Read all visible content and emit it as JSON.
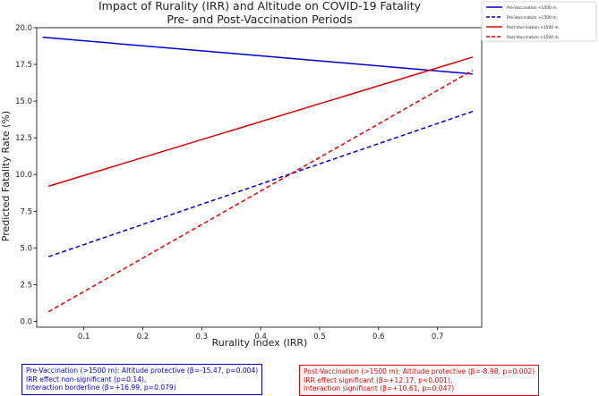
{
  "chart_data": {
    "type": "line",
    "title_lines": [
      "Impact of Rurality (IRR) and Altitude on COVID-19 Fatality",
      "Pre- and Post-Vaccination Periods"
    ],
    "xlabel": "Rurality Index (IRR)",
    "ylabel": "Predicted Fatality Rate (%)",
    "xlim": [
      0.02,
      0.775
    ],
    "ylim": [
      -0.4,
      20.0
    ],
    "x_ticks": [
      0.1,
      0.2,
      0.3,
      0.4,
      0.5,
      0.6,
      0.7
    ],
    "x_tick_labels": [
      "0.1",
      "0.2",
      "0.3",
      "0.4",
      "0.5",
      "0.6",
      "0.7"
    ],
    "y_ticks": [
      0.0,
      2.5,
      5.0,
      7.5,
      10.0,
      12.5,
      15.0,
      17.5,
      20.0
    ],
    "y_tick_labels": [
      "0.0",
      "2.5",
      "5.0",
      "7.5",
      "10.0",
      "12.5",
      "15.0",
      "17.5",
      "20.0"
    ],
    "grid": false,
    "legend_position": "top-right",
    "series": [
      {
        "name": "Pre-Vaccination <1500 m",
        "color": "#0000cc",
        "dash": "solid",
        "x": [
          0.03,
          0.76
        ],
        "y": [
          19.35,
          16.85
        ]
      },
      {
        "name": "Pre-Vaccination >1500 m",
        "color": "#0000cc",
        "dash": "dashed",
        "x": [
          0.04,
          0.76
        ],
        "y": [
          4.4,
          14.3
        ]
      },
      {
        "name": "Post-Vaccination <1500 m",
        "color": "#dd0000",
        "dash": "solid",
        "x": [
          0.04,
          0.76
        ],
        "y": [
          9.2,
          18.0
        ]
      },
      {
        "name": "Post-Vaccination >1500 m",
        "color": "#dd0000",
        "dash": "dashed",
        "x": [
          0.04,
          0.76
        ],
        "y": [
          0.65,
          17.1
        ]
      }
    ]
  },
  "annotations": {
    "pre": {
      "color": "#0000cc",
      "lines": [
        "Pre-Vaccination (>1500 m): Altitude protective (β=-15.47, p=0.004)",
        "IRR effect non-significant (p=0.14),",
        "Interaction borderline (β=+16.99, p=0.079)"
      ]
    },
    "post": {
      "color": "#dd0000",
      "lines": [
        "Post-Vaccination (>1500 m): Altitude protective (β=-8.98, p=0.002)",
        "IRR effect significant (β=+12.17, p<0.001),",
        "Interaction significant (β=+10.61, p=0.047)"
      ]
    }
  }
}
